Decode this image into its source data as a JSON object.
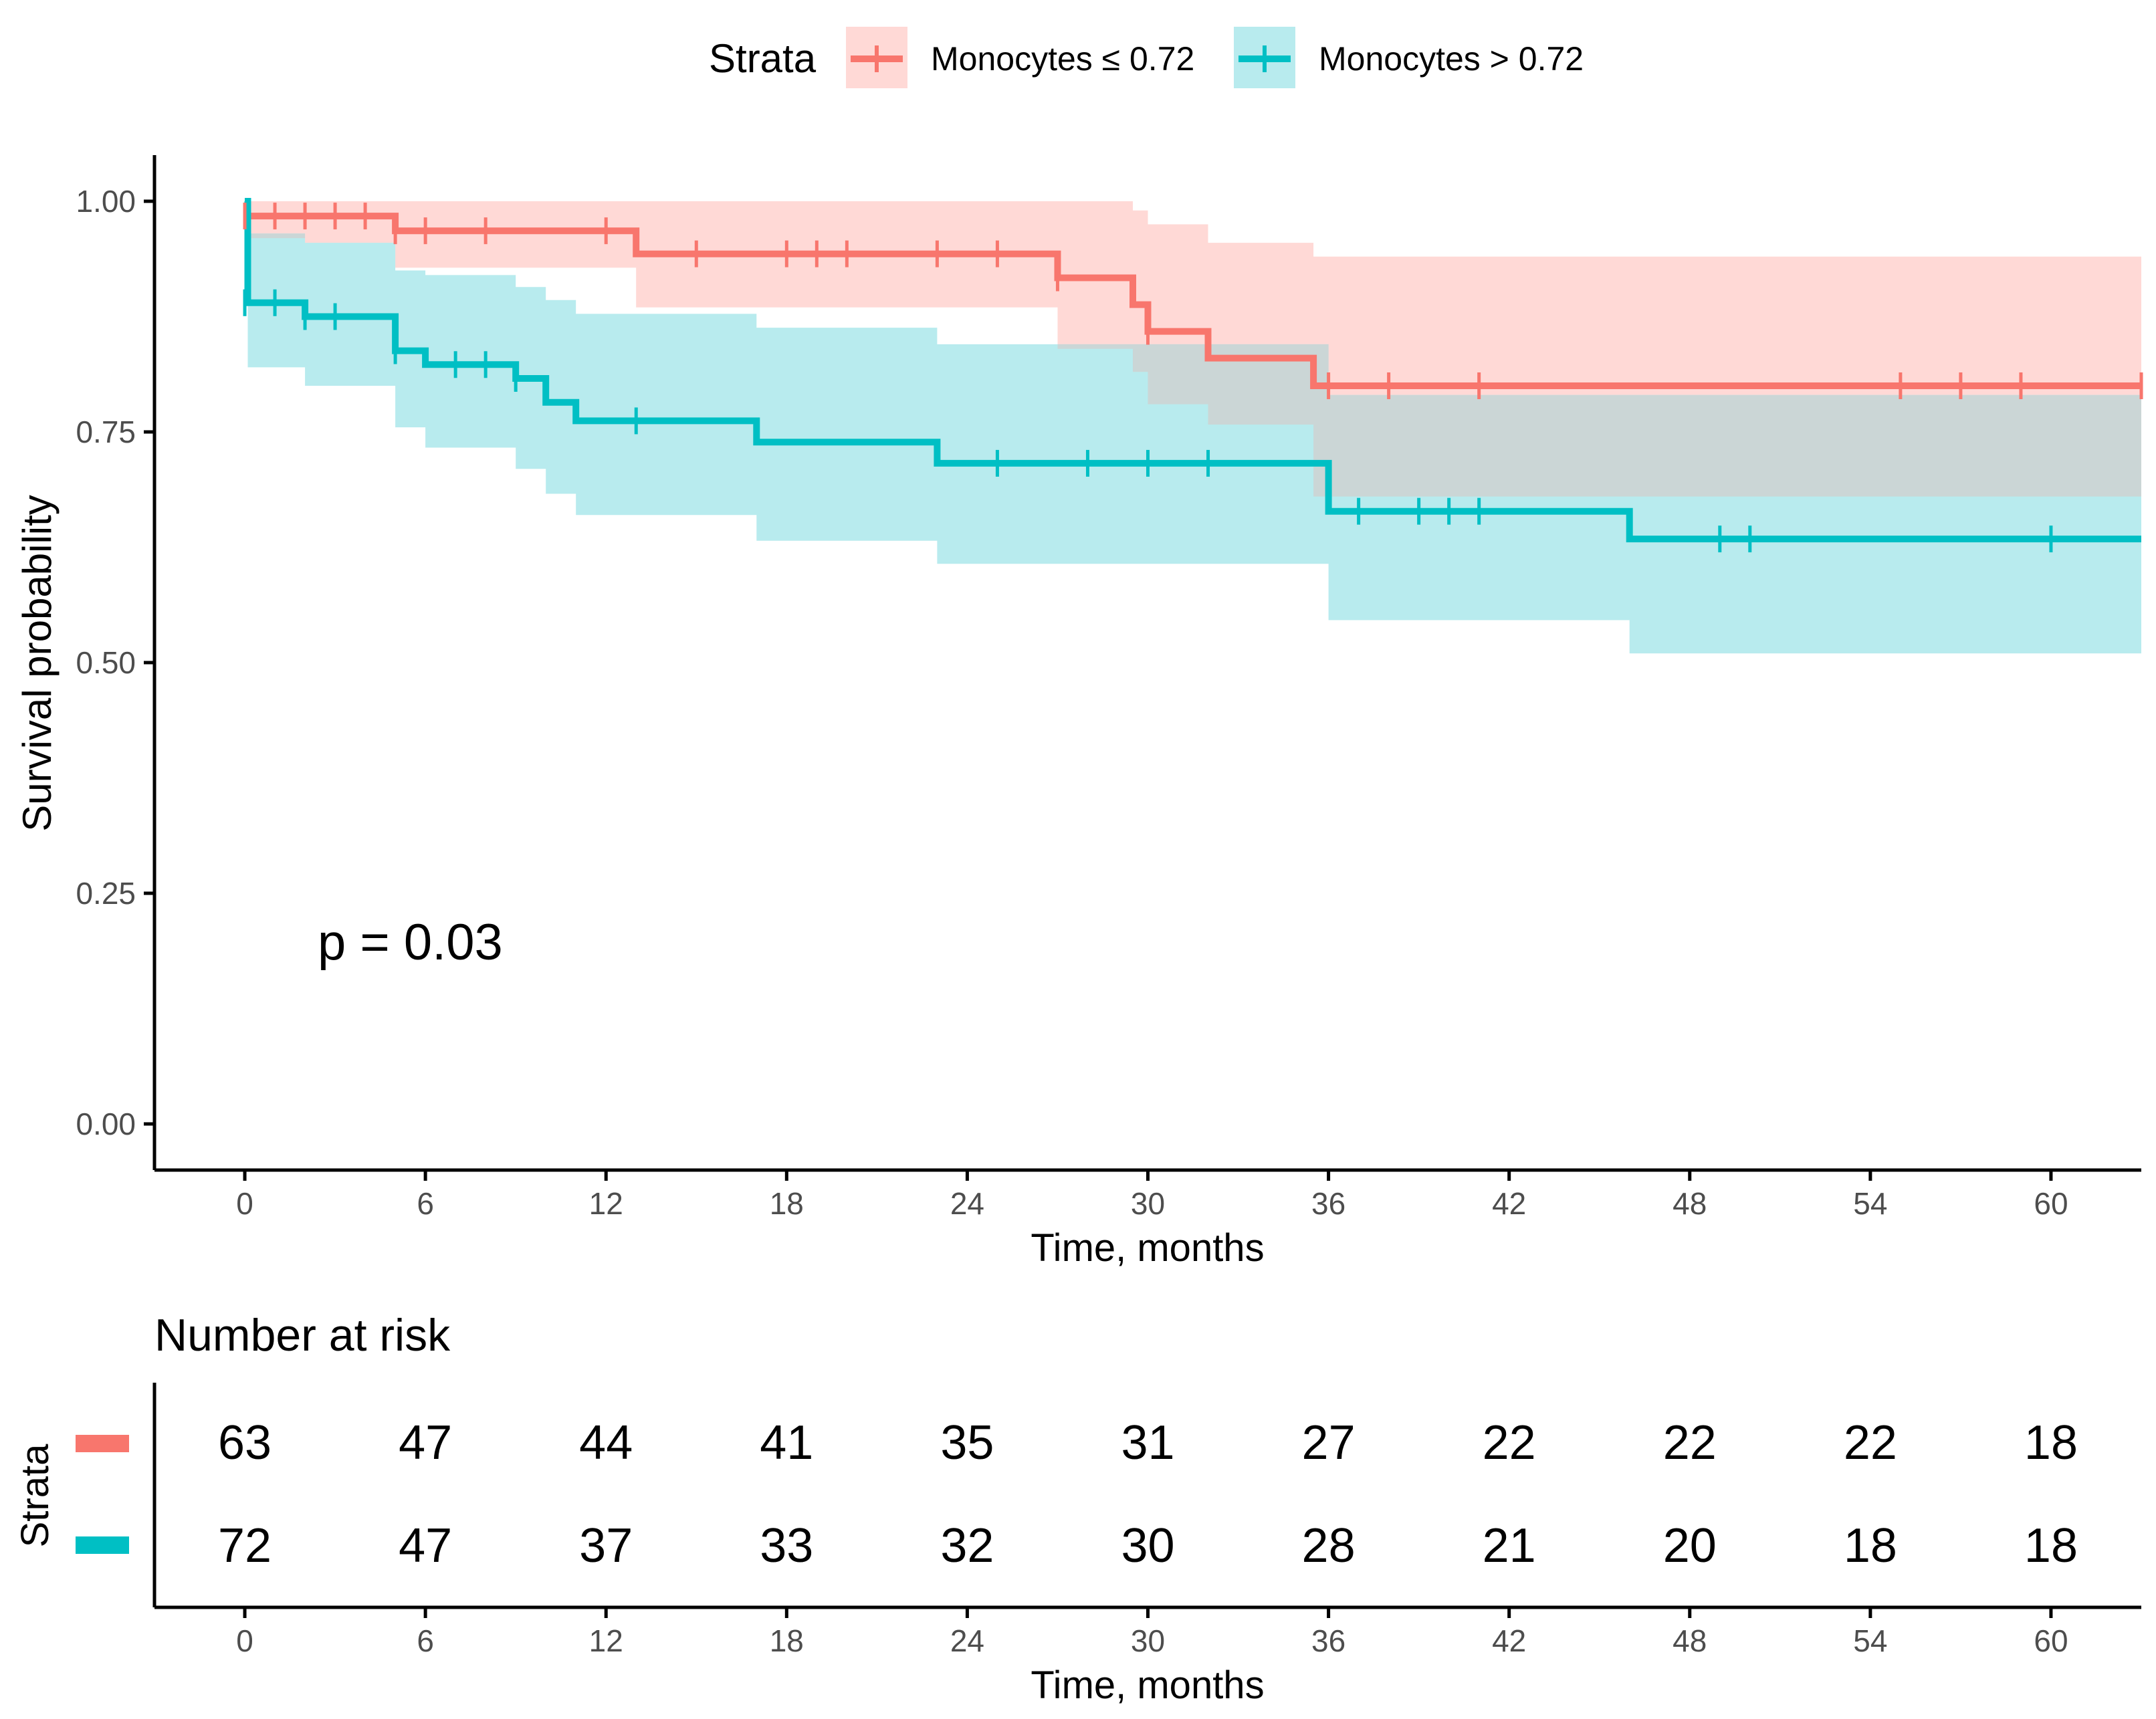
{
  "legend": {
    "title": "Strata",
    "items": [
      {
        "label": "Monocytes  ≤ 0.72",
        "color": "#F8766D",
        "fill": "#FFD9D6"
      },
      {
        "label": "Monocytes > 0.72",
        "color": "#00BFC4",
        "fill": "#B8EBEE"
      }
    ]
  },
  "p_value": "p = 0.03",
  "risk_table": {
    "title": "Number at risk",
    "ylabel": "Strata",
    "xlabel": "Time, months",
    "rows": [
      {
        "color": "#F8766D",
        "values": [
          63,
          47,
          44,
          41,
          35,
          31,
          27,
          22,
          22,
          22,
          18
        ]
      },
      {
        "color": "#00BFC4",
        "values": [
          72,
          47,
          37,
          33,
          32,
          30,
          28,
          21,
          20,
          18,
          18
        ]
      }
    ]
  },
  "chart_data": {
    "type": "line",
    "subtype": "kaplan-meier",
    "title": "",
    "xlabel": "Time, months",
    "ylabel": "Survival probability",
    "xlim": [
      -3,
      63
    ],
    "ylim": [
      -0.05,
      1.05
    ],
    "x_ticks": [
      0,
      6,
      12,
      18,
      24,
      30,
      36,
      42,
      48,
      54,
      60
    ],
    "y_ticks": [
      0,
      0.25,
      0.5,
      0.75,
      1.0
    ],
    "y_tick_labels": [
      "0.00",
      "0.25",
      "0.50",
      "0.75",
      "1.00"
    ],
    "grid": false,
    "legend_position": "top",
    "overlap_color": "#CBD6D6",
    "series": [
      {
        "name": "Monocytes  ≤ 0.72",
        "color": "#F8766D",
        "fill": "#FFD9D6",
        "x": [
          0,
          5,
          13,
          27,
          29.5,
          30,
          32,
          35.5,
          63
        ],
        "y": [
          0.984,
          0.968,
          0.943,
          0.917,
          0.888,
          0.859,
          0.83,
          0.8,
          0.8
        ],
        "ci_x": [
          0,
          2,
          5,
          13,
          27,
          29.5,
          30,
          32,
          35.5,
          63
        ],
        "ci_lower": [
          0.96,
          0.955,
          0.928,
          0.885,
          0.84,
          0.815,
          0.78,
          0.758,
          0.68,
          0.68
        ],
        "ci_upper": [
          1.0,
          1.0,
          1.0,
          1.0,
          1.0,
          0.99,
          0.975,
          0.955,
          0.94,
          0.94
        ],
        "censor_x": [
          0,
          1,
          2,
          3,
          4,
          5,
          6,
          8,
          12,
          15,
          18,
          19,
          20,
          23,
          25,
          27,
          30,
          36,
          38,
          41,
          55,
          57,
          59,
          63
        ],
        "censor_y": [
          0.984,
          0.984,
          0.984,
          0.984,
          0.984,
          0.968,
          0.968,
          0.968,
          0.968,
          0.943,
          0.943,
          0.943,
          0.943,
          0.943,
          0.943,
          0.917,
          0.859,
          0.8,
          0.8,
          0.8,
          0.8,
          0.8,
          0.8,
          0.8
        ]
      },
      {
        "name": "Monocytes > 0.72",
        "color": "#00BFC4",
        "fill": "#B8EBEE",
        "x": [
          0,
          0.1,
          2,
          5,
          6,
          9,
          10,
          11,
          17,
          23,
          36,
          46,
          63
        ],
        "y": [
          1.0,
          0.89,
          0.875,
          0.838,
          0.823,
          0.808,
          0.782,
          0.762,
          0.739,
          0.716,
          0.664,
          0.634,
          0.634
        ],
        "ci_x": [
          0,
          0.1,
          2,
          5,
          6,
          9,
          10,
          11,
          17,
          23,
          36,
          46,
          63
        ],
        "ci_lower": [
          1.0,
          0.82,
          0.8,
          0.755,
          0.733,
          0.71,
          0.683,
          0.66,
          0.632,
          0.607,
          0.546,
          0.51,
          0.51
        ],
        "ci_upper": [
          1.0,
          0.965,
          0.955,
          0.925,
          0.92,
          0.907,
          0.893,
          0.878,
          0.863,
          0.845,
          0.79,
          0.79,
          0.79
        ],
        "censor_x": [
          0,
          1,
          2,
          3,
          5,
          7,
          8,
          9,
          13,
          25,
          28,
          30,
          32,
          37,
          39,
          40,
          41,
          49,
          50,
          60
        ],
        "censor_y": [
          0.89,
          0.89,
          0.875,
          0.875,
          0.838,
          0.823,
          0.823,
          0.808,
          0.762,
          0.716,
          0.716,
          0.716,
          0.716,
          0.664,
          0.664,
          0.664,
          0.664,
          0.634,
          0.634,
          0.634
        ]
      }
    ]
  }
}
